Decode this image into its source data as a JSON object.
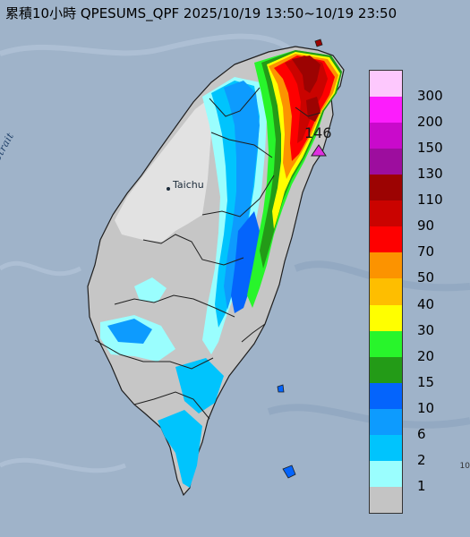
{
  "title": "累積10小時 QPESUMS_QPF 2025/10/19 13:50~10/19 23:50",
  "strait_label": "Formosa Strait",
  "city_label": "Taichu",
  "max_label": "146",
  "edge_text": "10",
  "legend": {
    "labels": [
      "300",
      "200",
      "150",
      "130",
      "110",
      "90",
      "70",
      "50",
      "40",
      "30",
      "20",
      "15",
      "10",
      "6",
      "2",
      "1"
    ],
    "colors": [
      "#fdc8fd",
      "#fc1dfc",
      "#c90acb",
      "#9d0d9e",
      "#9c0302",
      "#ca0300",
      "#fe0000",
      "#fc9300",
      "#febe00",
      "#ffff00",
      "#28f52b",
      "#239b17",
      "#0464fc",
      "#0d9bfe",
      "#00c4fd",
      "#9afefe",
      "#c4c4c4"
    ]
  },
  "colors": {
    "sea": "#9fb3c9",
    "land_gray": "#c6c6c6",
    "land_white": "#e2e2e2",
    "county_border": "#1f1f1f",
    "marker": "#e030e0"
  }
}
